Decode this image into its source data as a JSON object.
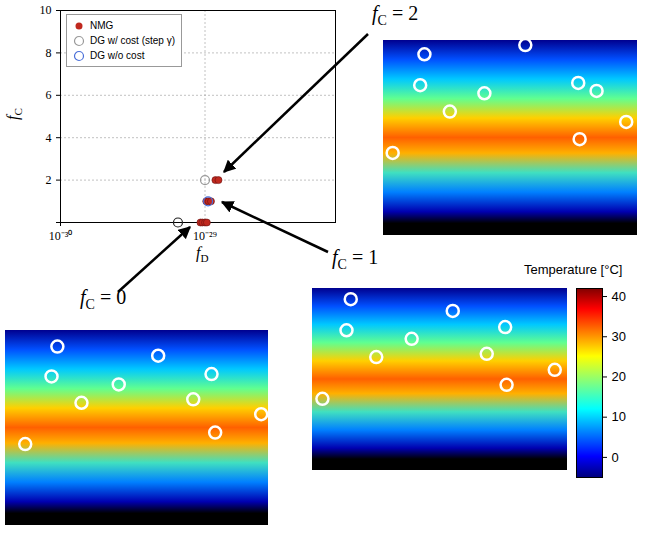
{
  "chart_data": {
    "type": "scatter",
    "x_label": "fD",
    "y_label": "fC",
    "log": "x",
    "grid": true,
    "legend": "top-left",
    "xlim": [
      1e-30,
      8e-29
    ],
    "ylim": [
      0,
      10
    ],
    "xticks": [
      {
        "value": 1e-30,
        "label": "10⁻³⁰"
      },
      {
        "value": 1e-29,
        "label": "10⁻²⁹"
      }
    ],
    "yticks": [
      0,
      2,
      4,
      6,
      8,
      10
    ],
    "series": [
      {
        "name": "NMG",
        "color": "#c0281e",
        "marker": "dot",
        "x": [
          9.3e-30,
          9.6e-30,
          1e-29,
          1.03e-29,
          1.02e-29,
          1.06e-29,
          1.1e-29,
          1.18e-29,
          1.24e-29
        ],
        "y": [
          0,
          0,
          0,
          0,
          1,
          1,
          1,
          2,
          2
        ]
      },
      {
        "name": "DG w/ cost (step γ)",
        "color": "#999999",
        "marker": "circle",
        "colors": [
          "#999999",
          "#222222"
        ],
        "x": [
          1e-29,
          6.5e-30
        ],
        "y": [
          2,
          0
        ]
      },
      {
        "name": "DG w/o cost",
        "color": "#4a6fd8",
        "marker": "circle",
        "x": [
          1.05e-29
        ],
        "y": [
          1
        ]
      }
    ]
  },
  "maps": {
    "lonlim": [
      20,
      380
    ],
    "latlim": [
      -80,
      90
    ],
    "panels": [
      {
        "label": "fC = 2",
        "sites": [
          [
            78,
            78
          ],
          [
            72,
            51
          ],
          [
            114,
            28
          ],
          [
            163,
            44
          ],
          [
            221,
            86
          ],
          [
            296,
            53
          ],
          [
            322,
            46
          ],
          [
            298,
            4
          ],
          [
            364,
            19
          ],
          [
            33,
            -8
          ]
        ]
      },
      {
        "label": "fC = 1",
        "sites": [
          [
            74,
            80
          ],
          [
            68,
            51
          ],
          [
            110,
            26
          ],
          [
            160,
            43
          ],
          [
            218,
            69
          ],
          [
            292,
            54
          ],
          [
            266,
            29
          ],
          [
            294,
            0
          ],
          [
            362,
            14
          ],
          [
            34,
            -13
          ]
        ]
      },
      {
        "label": "fC = 0",
        "sites": [
          [
            91,
            76
          ],
          [
            83,
            50
          ],
          [
            124,
            27
          ],
          [
            175,
            43
          ],
          [
            229,
            68
          ],
          [
            302,
            52
          ],
          [
            277,
            30
          ],
          [
            307,
            1
          ],
          [
            370,
            17
          ],
          [
            47,
            -9
          ]
        ]
      }
    ]
  },
  "colorbar": {
    "label": "Temperature [°C]",
    "range": [
      -5,
      42
    ],
    "ticks": [
      0,
      10,
      20,
      30,
      40
    ]
  }
}
